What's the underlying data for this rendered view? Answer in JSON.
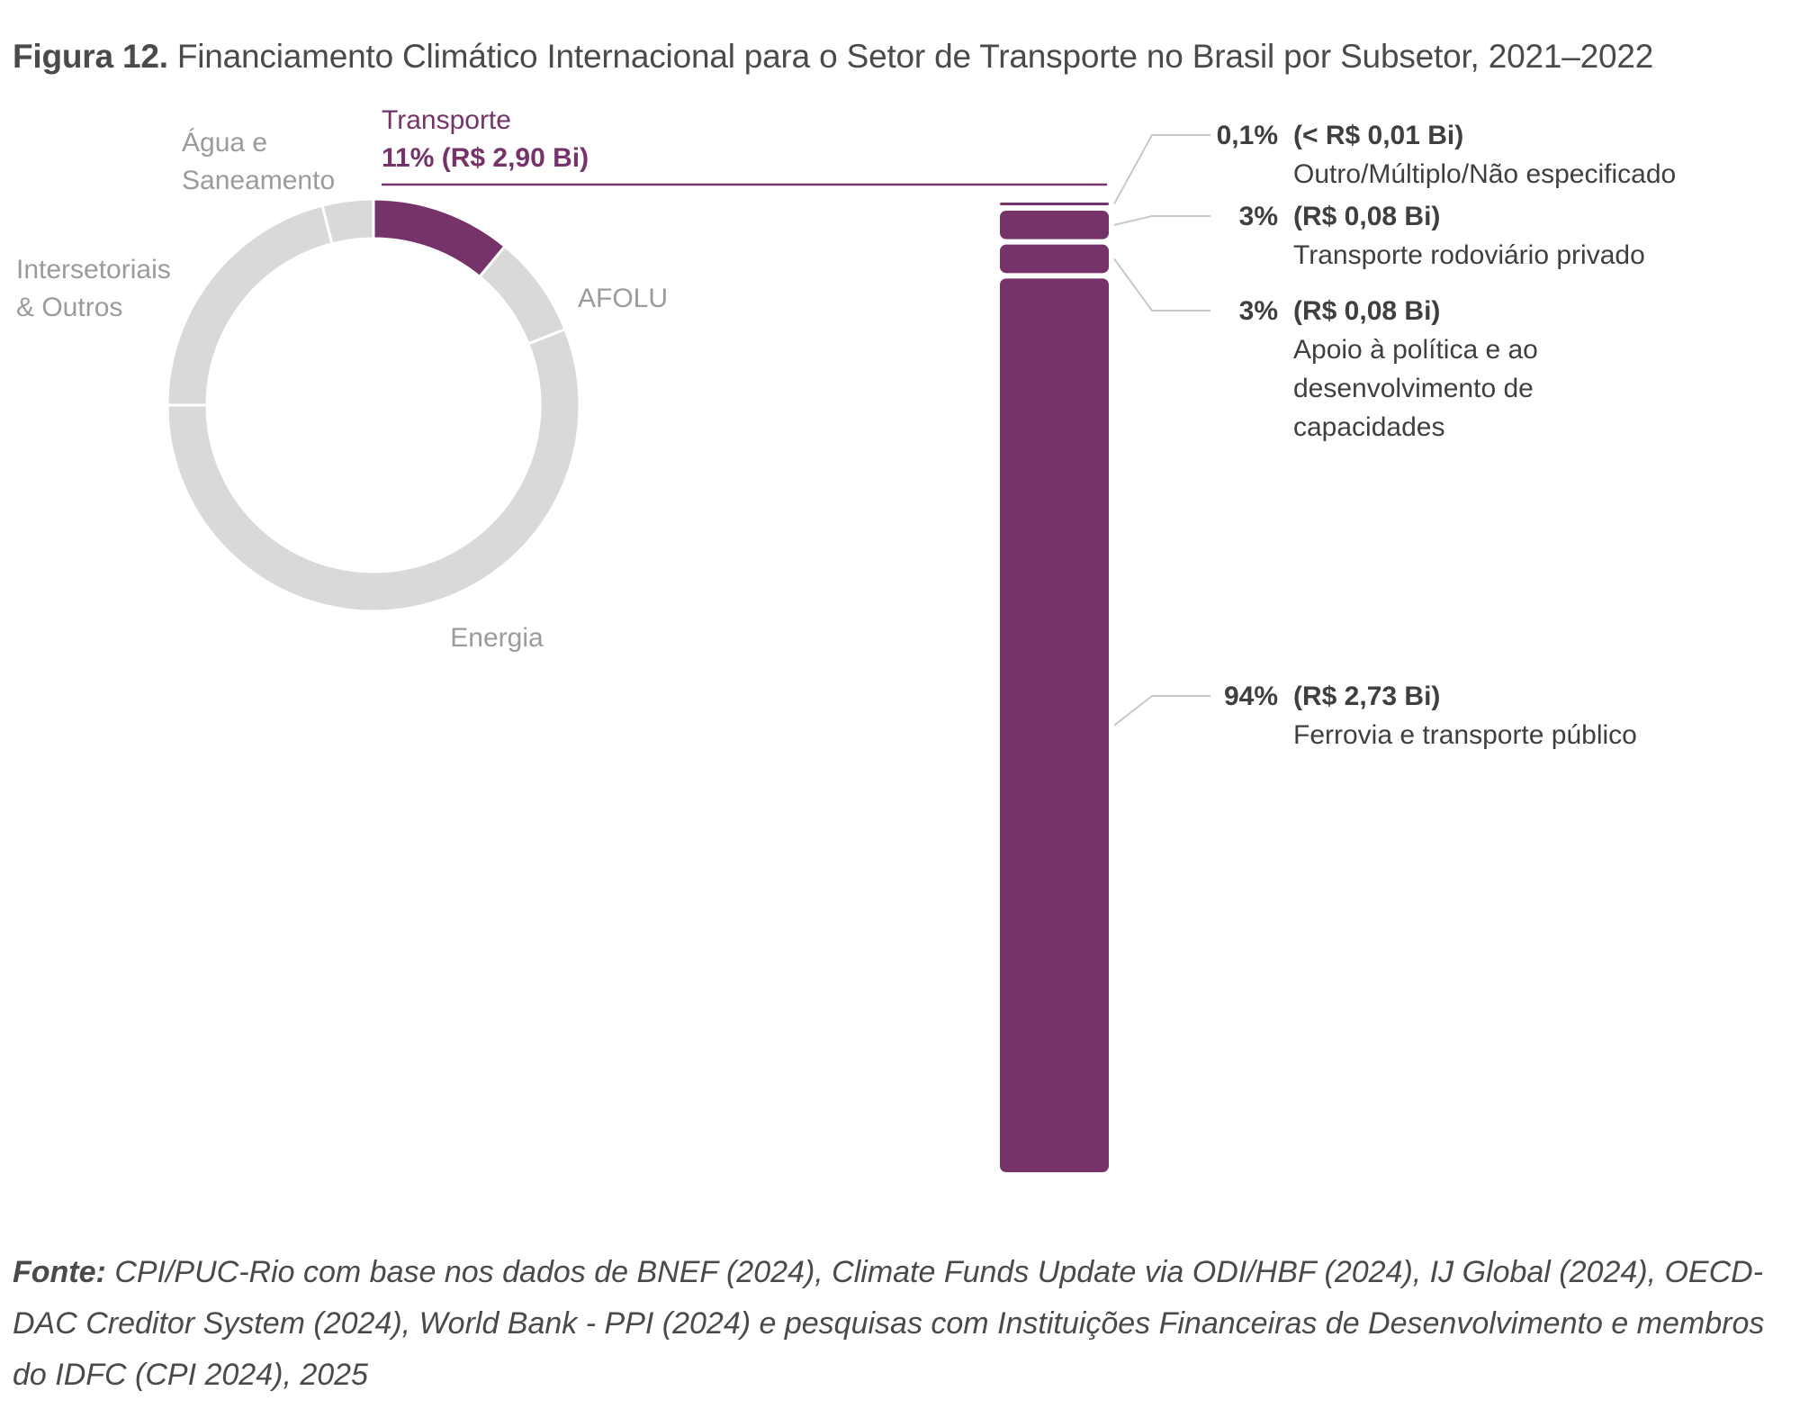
{
  "figure": {
    "label": "Figura 12.",
    "title": "Financiamento Climático Internacional para o Setor de Transporte no Brasil por Subsetor, 2021–2022"
  },
  "colors": {
    "highlight": "#75336a",
    "muted": "#d9d9d9",
    "muted_text": "#9b9b9b",
    "leader": "#c8c8c8"
  },
  "chart_data": [
    {
      "type": "pie",
      "variant": "donut",
      "slices": [
        {
          "label_lines": [
            "Transporte"
          ],
          "value": 11,
          "value_label": "11% (R$ 2,90 Bi)",
          "highlight": true
        },
        {
          "label_lines": [
            "AFOLU"
          ],
          "value": 8,
          "highlight": false
        },
        {
          "label_lines": [
            "Energia"
          ],
          "value": 56,
          "highlight": false
        },
        {
          "label_lines": [
            "Intersetoriais",
            "& Outros"
          ],
          "value": 21,
          "highlight": false
        },
        {
          "label_lines": [
            "Água e",
            "Saneamento"
          ],
          "value": 4,
          "highlight": false
        }
      ]
    },
    {
      "type": "bar",
      "variant": "stacked-single-column",
      "segments": [
        {
          "pct": 0.1,
          "pct_label": "0,1%",
          "value_label": "(< R$ 0,01 Bi)",
          "name_lines": [
            "Outro/Múltiplo/Não especificado"
          ]
        },
        {
          "pct": 3,
          "pct_label": "3%",
          "value_label": "(R$ 0,08 Bi)",
          "name_lines": [
            "Transporte rodoviário privado"
          ]
        },
        {
          "pct": 3,
          "pct_label": "3%",
          "value_label": "(R$ 0,08 Bi)",
          "name_lines": [
            "Apoio à política e ao",
            "desenvolvimento de",
            "capacidades"
          ]
        },
        {
          "pct": 94,
          "pct_label": "94%",
          "value_label": "(R$ 2,73 Bi)",
          "name_lines": [
            "Ferrovia e transporte público"
          ]
        }
      ]
    }
  ],
  "source": {
    "label": "Fonte:",
    "text": "CPI/PUC-Rio com base nos dados de BNEF (2024), Climate Funds Update via ODI/HBF (2024), IJ Global (2024), OECD-DAC Creditor System (2024), World Bank - PPI (2024) e pesquisas com Instituições Financeiras de Desenvolvimento e membros do IDFC (CPI 2024), 2025"
  }
}
